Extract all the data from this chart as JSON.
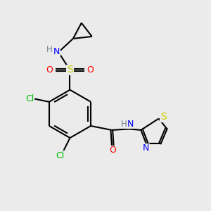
{
  "background_color": "#ebebeb",
  "figsize": [
    3.0,
    3.0
  ],
  "dpi": 100,
  "colors": {
    "C": "#000000",
    "H": "#708090",
    "N": "#0000ff",
    "O": "#ff0000",
    "S_sulfonyl": "#cccc00",
    "S_thiazole": "#cccc00",
    "Cl": "#00bb00"
  },
  "bond_color": "#000000",
  "bond_lw": 1.5
}
